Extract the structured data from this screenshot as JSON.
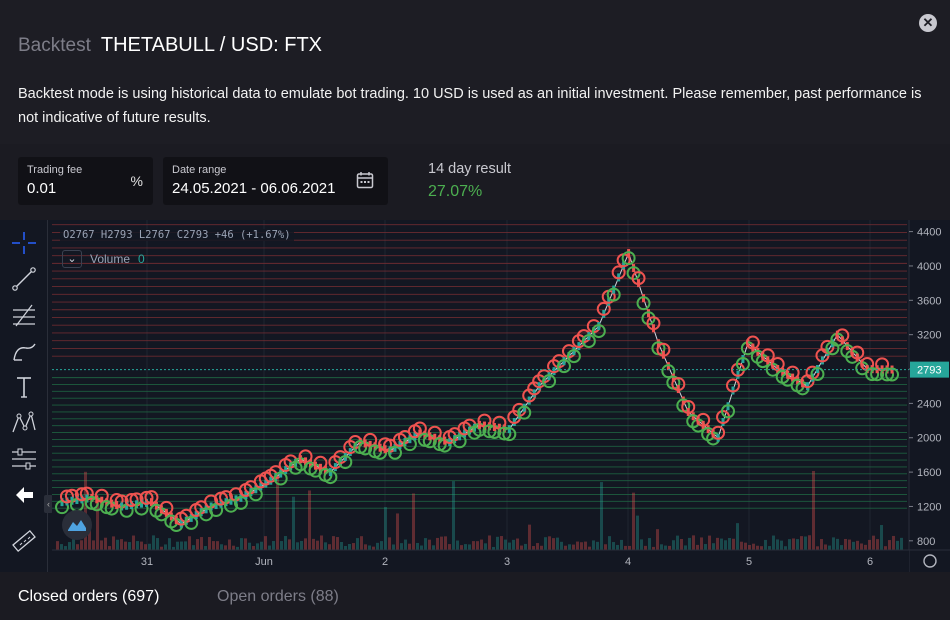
{
  "header": {
    "title_prefix": "Backtest",
    "title": "THETABULL / USD: FTX",
    "description": "Backtest mode is using historical data to emulate bot trading. 10 USD is used as an initial investment. Please remember, past performance is not indicative of future results.",
    "close_icon": "close-icon"
  },
  "controls": {
    "fee_label": "Trading fee",
    "fee_value": "0.01",
    "fee_unit": "%",
    "range_label": "Date range",
    "range_value": "24.05.2021 - 06.06.2021",
    "result_label": "14 day result",
    "result_value": "27.07%",
    "result_color": "#4caf50"
  },
  "chart": {
    "ohlc_legend": "O2767 H2793 L2767 C2793 +46 (+1.67%)",
    "volume_label": "Volume",
    "volume_value": "0",
    "last_price_label": "2793",
    "icons": [
      "crosshair-icon",
      "trendline-icon",
      "fib-icon",
      "brush-icon",
      "text-icon",
      "pattern-icon",
      "measure-icon",
      "back-arrow-icon",
      "ruler-icon"
    ],
    "up_color": "#26a69a",
    "down_color": "#ef5350",
    "buy_marker_color": "#4caf50",
    "sell_marker_color": "#ef5350"
  },
  "chart_data": {
    "type": "line",
    "x_ticks": [
      "31",
      "Jun",
      "2",
      "3",
      "4",
      "5",
      "6"
    ],
    "y_ticks": [
      "4400",
      "4000",
      "3600",
      "3200",
      "2800",
      "2400",
      "2000",
      "1600",
      "1200",
      "800"
    ],
    "ylim": [
      600,
      4500
    ],
    "x": [
      "May 30",
      "May 30",
      "May 30",
      "May 31",
      "May 31",
      "May 31",
      "May 31",
      "Jun 1",
      "Jun 1",
      "Jun 1",
      "Jun 1",
      "Jun 2",
      "Jun 2",
      "Jun 2",
      "Jun 2",
      "Jun 3",
      "Jun 3",
      "Jun 3",
      "Jun 3",
      "Jun 4",
      "Jun 4",
      "Jun 4",
      "Jun 4",
      "Jun 5",
      "Jun 5",
      "Jun 5",
      "Jun 5",
      "Jun 6",
      "Jun 6"
    ],
    "series": [
      {
        "values": [
          1250,
          1300,
          1200,
          1250,
          1000,
          1200,
          1300,
          1500,
          1750,
          1600,
          1950,
          1850,
          2050,
          1950,
          2150,
          2100,
          2600,
          2950,
          3300,
          4150,
          3100,
          2300,
          2000,
          3100,
          2800,
          2600,
          3200,
          2800,
          2793
        ]
      }
    ]
  },
  "tabs": {
    "closed": "Closed orders (697)",
    "open": "Open orders (88)"
  }
}
